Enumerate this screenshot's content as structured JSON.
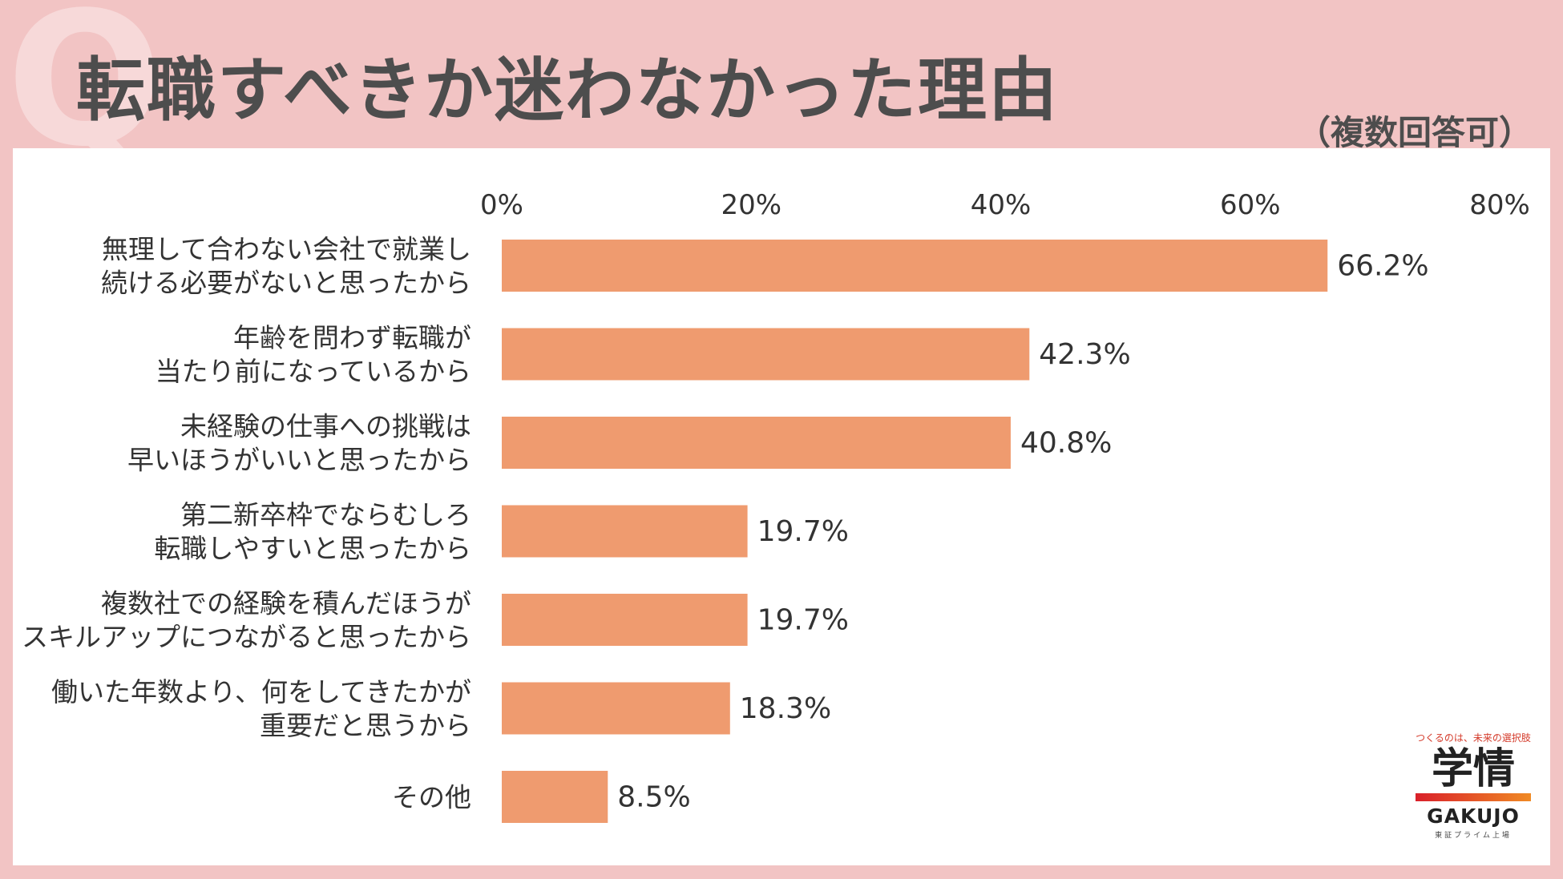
{
  "header": {
    "q_mark": "Q",
    "title": "転職すべきか迷わなかった理由",
    "note": "（複数回答可）"
  },
  "colors": {
    "background": "#f2c4c4",
    "panel": "#ffffff",
    "bar": "#ef9b6f",
    "title": "#4d4d4d"
  },
  "chart_data": {
    "type": "bar",
    "orientation": "horizontal",
    "xlim": [
      0,
      80
    ],
    "x_ticks": [
      "0%",
      "20%",
      "40%",
      "60%",
      "80%"
    ],
    "x_tick_values": [
      0,
      20,
      40,
      60,
      80
    ],
    "grid": false,
    "categories": [
      [
        "無理して合わない会社で就業し",
        "続ける必要がないと思ったから"
      ],
      [
        "年齢を問わず転職が",
        "当たり前になっているから"
      ],
      [
        "未経験の仕事への挑戦は",
        "早いほうがいいと思ったから"
      ],
      [
        "第二新卒枠でならむしろ",
        "転職しやすいと思ったから"
      ],
      [
        "複数社での経験を積んだほうが",
        "スキルアップにつながると思ったから"
      ],
      [
        "働いた年数より、何をしてきたかが",
        "重要だと思うから"
      ],
      [
        "その他"
      ]
    ],
    "values": [
      66.2,
      42.3,
      40.8,
      19.7,
      19.7,
      18.3,
      8.5
    ],
    "value_labels": [
      "66.2%",
      "42.3%",
      "40.8%",
      "19.7%",
      "19.7%",
      "18.3%",
      "8.5%"
    ]
  },
  "logo": {
    "tagline": "つくるのは、未来の選択肢",
    "mark": "学情",
    "wordmark": "GAKUJO",
    "sub": "東証プライム上場"
  }
}
